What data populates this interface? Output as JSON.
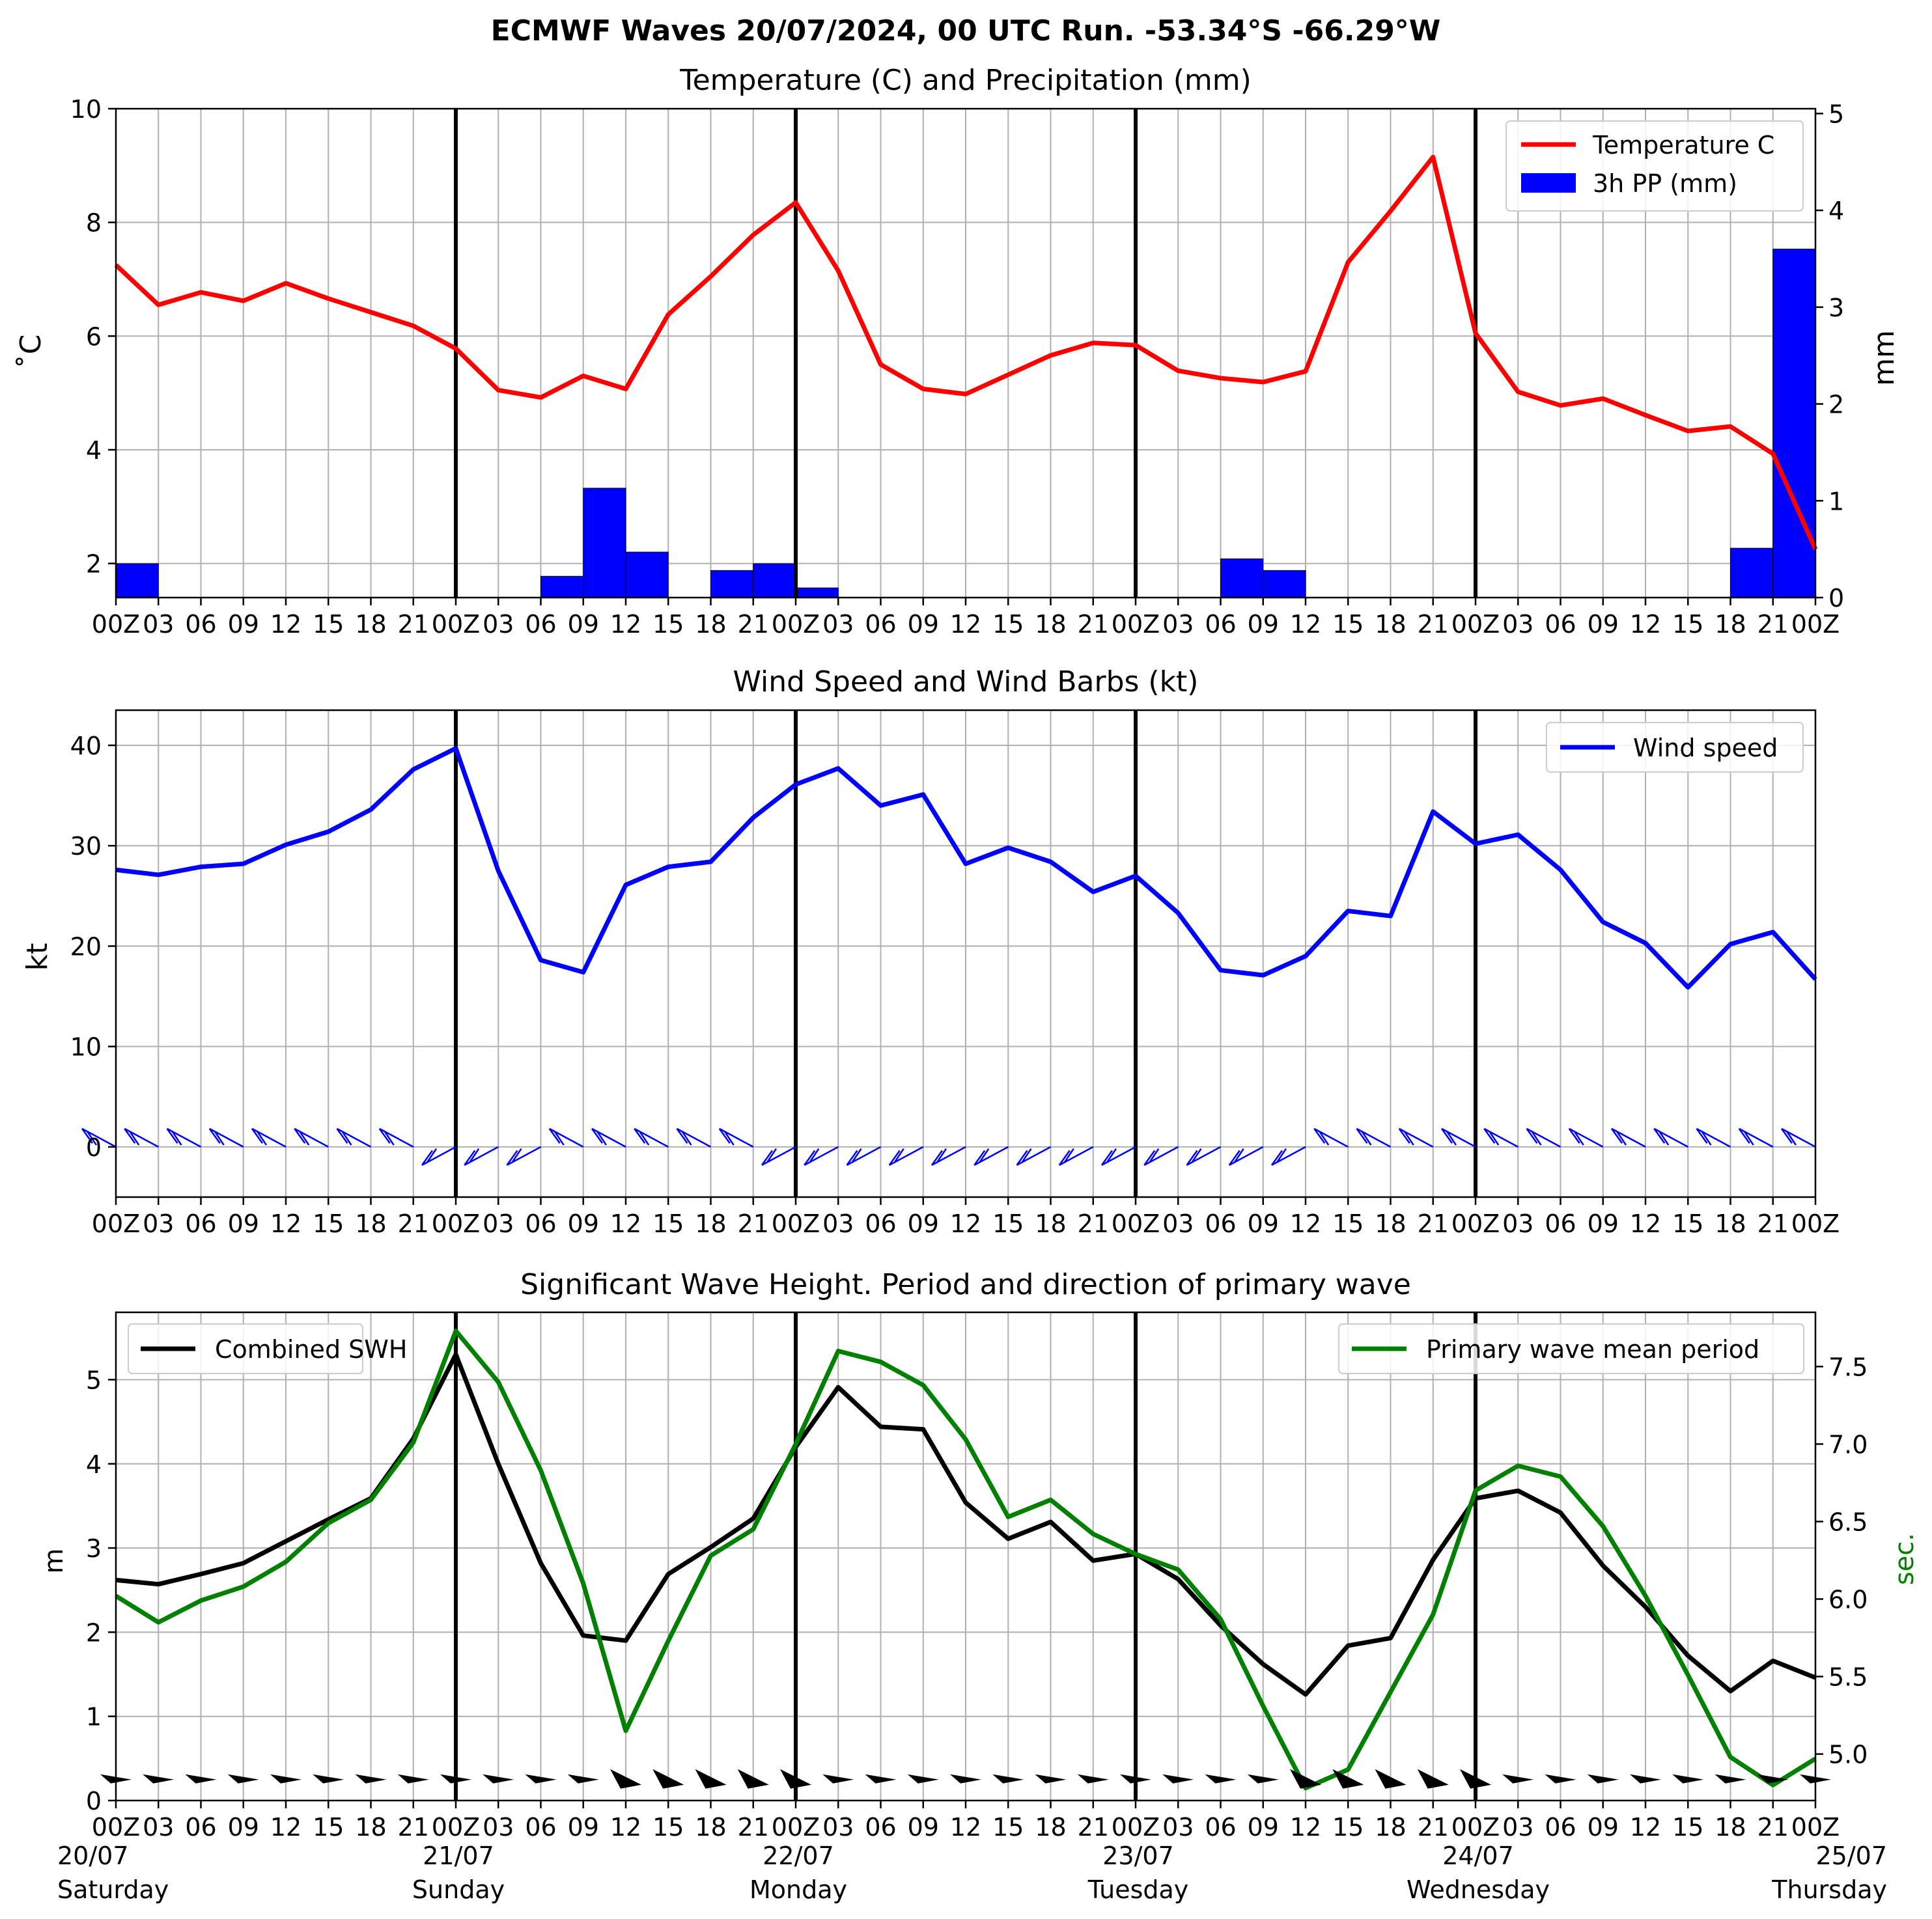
{
  "suptitle": "ECMWF Waves 20/07/2024, 00 UTC Run. -53.34°S -66.29°W",
  "colors": {
    "temperature": "#ff0000",
    "precip": "#0000ff",
    "wind": "#0000ff",
    "swh": "#000000",
    "period": "#008000",
    "grid": "#b0b0b0",
    "day_line": "#000000"
  },
  "x_ticks_hours": [
    "00Z",
    "03",
    "06",
    "09",
    "12",
    "15",
    "18",
    "21",
    "00Z",
    "03",
    "06",
    "09",
    "12",
    "15",
    "18",
    "21",
    "00Z",
    "03",
    "06",
    "09",
    "12",
    "15",
    "18",
    "21",
    "00Z",
    "03",
    "06",
    "09",
    "12",
    "15",
    "18",
    "21",
    "00Z",
    "03",
    "06",
    "09",
    "12",
    "15",
    "18",
    "21",
    "00Z"
  ],
  "day_labels": [
    {
      "date": "20/07",
      "day": "Saturday"
    },
    {
      "date": "21/07",
      "day": "Sunday"
    },
    {
      "date": "22/07",
      "day": "Monday"
    },
    {
      "date": "23/07",
      "day": "Tuesday"
    },
    {
      "date": "24/07",
      "day": "Wednesday"
    },
    {
      "date": "25/07",
      "day": "Thursday"
    }
  ],
  "chart_data": [
    {
      "type": "line",
      "title": "Temperature (C) and Precipitation (mm)",
      "ylabel": "$^\\circ$C",
      "ylabel_display": "˚C",
      "y2label": "mm",
      "ylim": [
        1.4,
        10
      ],
      "y2lim": [
        0,
        5.05
      ],
      "yticks": [
        "2",
        "4",
        "6",
        "8",
        "10"
      ],
      "y2ticks": [
        "0",
        "1",
        "2",
        "3",
        "4",
        "5"
      ],
      "grid": true,
      "legend_position": "top-right",
      "x_step_hours": 3,
      "series": [
        {
          "name": "Temperature C",
          "type": "line",
          "axis": "left",
          "values": [
            7.25,
            6.55,
            6.77,
            6.62,
            6.93,
            6.66,
            6.42,
            6.18,
            5.78,
            5.05,
            4.92,
            5.3,
            5.07,
            6.38,
            7.05,
            7.78,
            8.35,
            7.15,
            5.5,
            5.07,
            4.98,
            5.32,
            5.66,
            5.88,
            5.84,
            5.39,
            5.26,
            5.19,
            5.38,
            7.3,
            8.2,
            9.15,
            6.05,
            5.02,
            4.78,
            4.9,
            4.61,
            4.33,
            4.41,
            3.93,
            2.25
          ]
        },
        {
          "name": "3h PP (mm)",
          "type": "bar",
          "axis": "right",
          "values": [
            0,
            0.35,
            0,
            0,
            0,
            0,
            0,
            0,
            0,
            0,
            0,
            0.22,
            1.13,
            0.47,
            0,
            0.28,
            0.35,
            0.1,
            0,
            0,
            0,
            0,
            0,
            0,
            0,
            0,
            0,
            0.4,
            0.28,
            0,
            0,
            0,
            0,
            0,
            0,
            0,
            0,
            0,
            0,
            0.51,
            3.6
          ]
        }
      ]
    },
    {
      "type": "line",
      "title": "Wind Speed and Wind Barbs (kt)",
      "ylabel": "kt",
      "ylim": [
        -5,
        43.5
      ],
      "yticks": [
        "0",
        "10",
        "20",
        "30",
        "40"
      ],
      "grid": true,
      "legend_position": "top-right",
      "x_step_hours": 3,
      "series": [
        {
          "name": "Wind speed",
          "values": [
            27.6,
            27.1,
            27.9,
            28.2,
            30.1,
            31.4,
            33.6,
            37.6,
            39.7,
            27.5,
            18.6,
            17.4,
            26.1,
            27.9,
            28.4,
            32.8,
            36.1,
            37.7,
            34.0,
            35.1,
            28.2,
            29.8,
            28.4,
            25.4,
            27.0,
            23.3,
            17.6,
            17.1,
            19.0,
            23.5,
            23.0,
            33.4,
            30.2,
            31.1,
            27.6,
            22.4,
            20.3,
            15.9,
            20.2,
            21.4,
            16.7
          ]
        }
      ],
      "barbs_position_kt": 0
    },
    {
      "type": "line",
      "title": "Significant Wave Height. Period and direction of primary wave",
      "ylabel": "m",
      "y2label": "sec.",
      "ylim": [
        0,
        5.8
      ],
      "y2lim": [
        4.7,
        7.85
      ],
      "yticks": [
        "0",
        "1",
        "2",
        "3",
        "4",
        "5"
      ],
      "y2ticks": [
        "5.0",
        "5.5",
        "6.0",
        "6.5",
        "7.0",
        "7.5"
      ],
      "grid": true,
      "legend_left": "top-left",
      "legend_right": "top-right",
      "x_step_hours": 3,
      "series": [
        {
          "name": "Combined SWH",
          "axis": "left",
          "values": [
            2.62,
            2.57,
            2.69,
            2.82,
            3.08,
            3.34,
            3.59,
            4.3,
            5.3,
            4.0,
            2.82,
            1.96,
            1.9,
            2.69,
            3.01,
            3.35,
            4.2,
            4.91,
            4.44,
            4.41,
            3.54,
            3.11,
            3.31,
            2.85,
            2.93,
            2.63,
            2.08,
            1.62,
            1.26,
            1.84,
            1.93,
            2.86,
            3.59,
            3.68,
            3.42,
            2.79,
            2.3,
            1.72,
            1.3,
            1.66,
            1.46
          ]
        },
        {
          "name": "Primary wave mean period",
          "axis": "right",
          "values": [
            6.02,
            5.85,
            5.99,
            6.08,
            6.24,
            6.49,
            6.64,
            7.01,
            7.73,
            7.4,
            6.83,
            6.1,
            5.15,
            5.73,
            6.28,
            6.45,
            7.0,
            7.6,
            7.53,
            7.38,
            7.03,
            6.53,
            6.64,
            6.42,
            6.29,
            6.19,
            5.87,
            5.31,
            4.78,
            4.9,
            5.4,
            5.9,
            6.7,
            6.86,
            6.79,
            6.47,
            6.02,
            5.51,
            4.98,
            4.8,
            4.97
          ]
        }
      ]
    }
  ]
}
